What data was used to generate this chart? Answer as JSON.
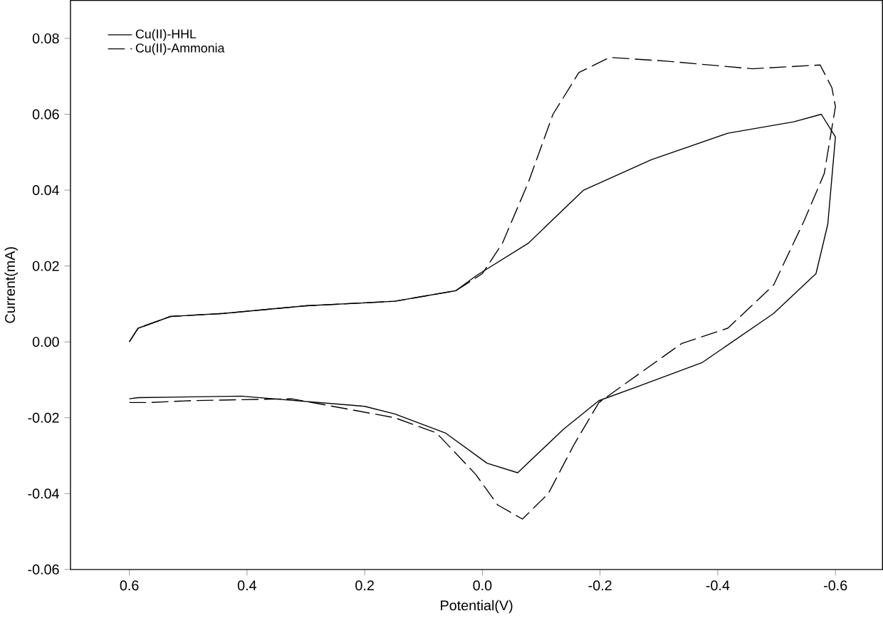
{
  "chart_data": {
    "type": "line",
    "xlabel": "Potential(V)",
    "ylabel": "Current(mA)",
    "xlim": [
      0.7,
      -0.68
    ],
    "ylim": [
      -0.06,
      0.09
    ],
    "xticks": [
      {
        "value": 0.6,
        "label": "0.6"
      },
      {
        "value": 0.4,
        "label": "0.4"
      },
      {
        "value": 0.2,
        "label": "0.2"
      },
      {
        "value": 0.0,
        "label": "0.0"
      },
      {
        "value": -0.2,
        "label": "-0.2"
      },
      {
        "value": -0.4,
        "label": "-0.4"
      },
      {
        "value": -0.6,
        "label": "-0.6"
      }
    ],
    "yticks": [
      {
        "value": -0.06,
        "label": "-0.06"
      },
      {
        "value": -0.04,
        "label": "-0.04"
      },
      {
        "value": -0.02,
        "label": "-0.02"
      },
      {
        "value": 0.0,
        "label": "0.00"
      },
      {
        "value": 0.02,
        "label": "0.02"
      },
      {
        "value": 0.04,
        "label": "0.04"
      },
      {
        "value": 0.06,
        "label": "0.06"
      },
      {
        "value": 0.08,
        "label": "0.08"
      }
    ],
    "grid": false,
    "legend": "top left",
    "series": [
      {
        "name": "Cu(II)-HHL",
        "color": "#000000",
        "line_style": "solid",
        "x": [
          0.6,
          0.585,
          0.53,
          0.44,
          0.3,
          0.149,
          0.045,
          0.011,
          -0.078,
          -0.172,
          -0.287,
          -0.417,
          -0.529,
          -0.576,
          -0.6,
          -0.587,
          -0.567,
          -0.495,
          -0.373,
          -0.26,
          -0.198,
          -0.138,
          -0.06,
          -0.008,
          0.063,
          0.149,
          0.2,
          0.41,
          0.585,
          0.6
        ],
        "values": [
          0.0,
          0.0036,
          0.0067,
          0.0075,
          0.0095,
          0.0107,
          0.0135,
          0.0174,
          0.026,
          0.04,
          0.048,
          0.055,
          0.058,
          0.06,
          0.054,
          0.031,
          0.018,
          0.0075,
          -0.0055,
          -0.012,
          -0.0155,
          -0.023,
          -0.0345,
          -0.032,
          -0.024,
          -0.019,
          -0.017,
          -0.0143,
          -0.0147,
          -0.015
        ]
      },
      {
        "name": "Cu(II)-Ammonia",
        "color": "#000000",
        "line_style": "dashed",
        "x": [
          0.6,
          0.585,
          0.53,
          0.44,
          0.3,
          0.149,
          0.045,
          0.0,
          -0.034,
          -0.078,
          -0.12,
          -0.164,
          -0.216,
          -0.313,
          -0.459,
          -0.574,
          -0.594,
          -0.6,
          -0.581,
          -0.547,
          -0.495,
          -0.417,
          -0.339,
          -0.243,
          -0.198,
          -0.156,
          -0.112,
          -0.068,
          -0.026,
          0.011,
          0.078,
          0.149,
          0.324,
          0.496,
          0.566,
          0.6
        ],
        "values": [
          0.0,
          0.0036,
          0.0067,
          0.0075,
          0.0095,
          0.0107,
          0.0135,
          0.018,
          0.026,
          0.042,
          0.06,
          0.071,
          0.075,
          0.074,
          0.072,
          0.073,
          0.067,
          0.062,
          0.0444,
          0.032,
          0.015,
          0.0036,
          -0.0004,
          -0.011,
          -0.016,
          -0.027,
          -0.04,
          -0.0467,
          -0.043,
          -0.035,
          -0.024,
          -0.02,
          -0.015,
          -0.0155,
          -0.016,
          -0.016
        ]
      }
    ]
  }
}
